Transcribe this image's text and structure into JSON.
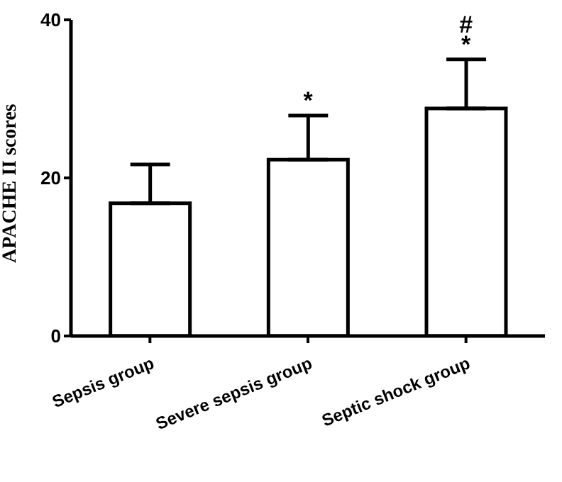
{
  "chart_data": {
    "type": "bar",
    "ylabel": "APACHE II scores",
    "categories": [
      "Sepsis group",
      "Severe sepsis group",
      "Septic shock group"
    ],
    "values": [
      16.8,
      22.3,
      28.8
    ],
    "errors": [
      [
        16.8,
        21.7
      ],
      [
        22.3,
        27.9
      ],
      [
        28.8,
        35.0
      ]
    ],
    "color": "#ffffff",
    "ylim": [
      0,
      40
    ],
    "yticks": [
      0,
      20,
      40
    ],
    "grid": false,
    "legend": false,
    "annotations": [
      "*",
      "*",
      "#"
    ]
  }
}
